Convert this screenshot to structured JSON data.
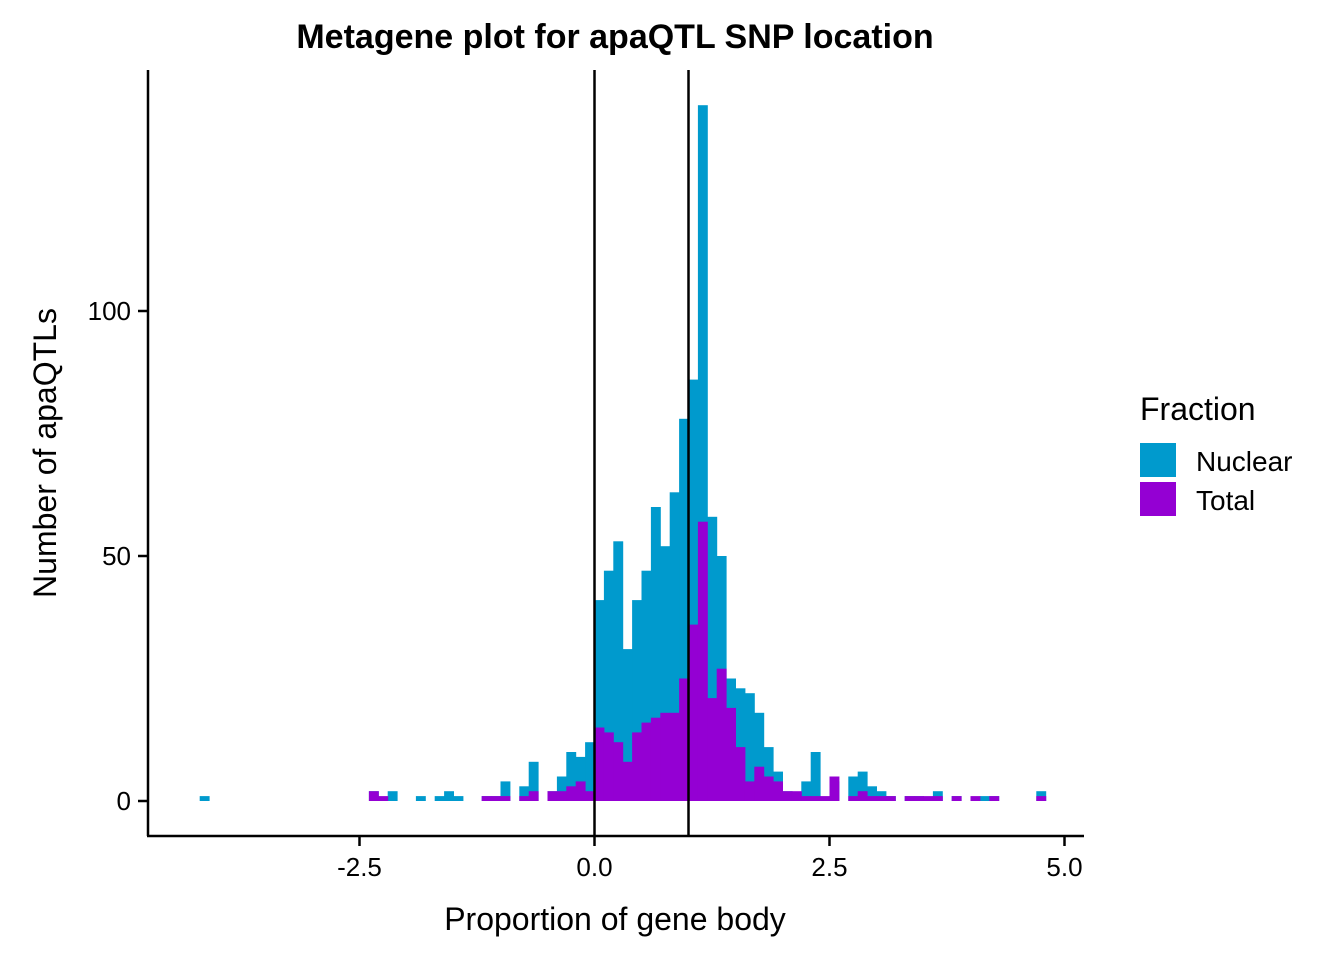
{
  "chart_data": {
    "type": "histogram",
    "title": "Metagene plot for apaQTL SNP location",
    "xlabel": "Proportion of gene body",
    "ylabel": "Number of apaQTLs",
    "xlim": [
      -4.7,
      5.2
    ],
    "ylim": [
      -7,
      148
    ],
    "x_ticks": [
      -2.5,
      0.0,
      2.5,
      5.0
    ],
    "x_tick_labels": [
      "-2.5",
      "0.0",
      "2.5",
      "5.0"
    ],
    "y_ticks": [
      0,
      50,
      100
    ],
    "y_tick_labels": [
      "0",
      "50",
      "100"
    ],
    "vlines": [
      0,
      1
    ],
    "bin_width": 0.1,
    "legend": {
      "title": "Fraction",
      "position": "right"
    },
    "series": [
      {
        "name": "Nuclear",
        "color": "#009ACD",
        "bins": [
          {
            "x": -4.2,
            "y": 1
          },
          {
            "x": -2.4,
            "y": 2
          },
          {
            "x": -2.2,
            "y": 2
          },
          {
            "x": -1.9,
            "y": 1
          },
          {
            "x": -1.7,
            "y": 1
          },
          {
            "x": -1.6,
            "y": 2
          },
          {
            "x": -1.5,
            "y": 1
          },
          {
            "x": -1.2,
            "y": 1
          },
          {
            "x": -1.1,
            "y": 1
          },
          {
            "x": -1.0,
            "y": 4
          },
          {
            "x": -0.8,
            "y": 3
          },
          {
            "x": -0.7,
            "y": 8
          },
          {
            "x": -0.5,
            "y": 2
          },
          {
            "x": -0.4,
            "y": 5
          },
          {
            "x": -0.3,
            "y": 10
          },
          {
            "x": -0.2,
            "y": 9
          },
          {
            "x": -0.1,
            "y": 12
          },
          {
            "x": 0.0,
            "y": 41
          },
          {
            "x": 0.1,
            "y": 47
          },
          {
            "x": 0.2,
            "y": 53
          },
          {
            "x": 0.3,
            "y": 31
          },
          {
            "x": 0.4,
            "y": 41
          },
          {
            "x": 0.5,
            "y": 47
          },
          {
            "x": 0.6,
            "y": 60
          },
          {
            "x": 0.7,
            "y": 52
          },
          {
            "x": 0.8,
            "y": 63
          },
          {
            "x": 0.9,
            "y": 78
          },
          {
            "x": 1.0,
            "y": 86
          },
          {
            "x": 1.1,
            "y": 142
          },
          {
            "x": 1.2,
            "y": 58
          },
          {
            "x": 1.3,
            "y": 50
          },
          {
            "x": 1.4,
            "y": 25
          },
          {
            "x": 1.5,
            "y": 23
          },
          {
            "x": 1.6,
            "y": 22
          },
          {
            "x": 1.7,
            "y": 18
          },
          {
            "x": 1.8,
            "y": 11
          },
          {
            "x": 1.9,
            "y": 6
          },
          {
            "x": 2.0,
            "y": 2
          },
          {
            "x": 2.1,
            "y": 1
          },
          {
            "x": 2.2,
            "y": 4
          },
          {
            "x": 2.3,
            "y": 10
          },
          {
            "x": 2.5,
            "y": 4
          },
          {
            "x": 2.7,
            "y": 5
          },
          {
            "x": 2.8,
            "y": 6
          },
          {
            "x": 2.9,
            "y": 3
          },
          {
            "x": 3.0,
            "y": 2
          },
          {
            "x": 3.1,
            "y": 1
          },
          {
            "x": 3.3,
            "y": 1
          },
          {
            "x": 3.4,
            "y": 1
          },
          {
            "x": 3.6,
            "y": 2
          },
          {
            "x": 3.8,
            "y": 1
          },
          {
            "x": 4.1,
            "y": 1
          },
          {
            "x": 4.2,
            "y": 1
          },
          {
            "x": 4.7,
            "y": 2
          }
        ]
      },
      {
        "name": "Total",
        "color": "#9400D3",
        "bins": [
          {
            "x": -2.4,
            "y": 2
          },
          {
            "x": -2.3,
            "y": 1
          },
          {
            "x": -1.2,
            "y": 1
          },
          {
            "x": -1.1,
            "y": 1
          },
          {
            "x": -1.0,
            "y": 1
          },
          {
            "x": -0.8,
            "y": 1
          },
          {
            "x": -0.7,
            "y": 2
          },
          {
            "x": -0.5,
            "y": 2
          },
          {
            "x": -0.4,
            "y": 2
          },
          {
            "x": -0.3,
            "y": 3
          },
          {
            "x": -0.2,
            "y": 4
          },
          {
            "x": -0.1,
            "y": 2
          },
          {
            "x": 0.0,
            "y": 15
          },
          {
            "x": 0.1,
            "y": 14
          },
          {
            "x": 0.2,
            "y": 12
          },
          {
            "x": 0.3,
            "y": 8
          },
          {
            "x": 0.4,
            "y": 14
          },
          {
            "x": 0.5,
            "y": 16
          },
          {
            "x": 0.6,
            "y": 17
          },
          {
            "x": 0.7,
            "y": 18
          },
          {
            "x": 0.8,
            "y": 18
          },
          {
            "x": 0.9,
            "y": 25
          },
          {
            "x": 1.0,
            "y": 36
          },
          {
            "x": 1.1,
            "y": 57
          },
          {
            "x": 1.2,
            "y": 21
          },
          {
            "x": 1.3,
            "y": 27
          },
          {
            "x": 1.4,
            "y": 19
          },
          {
            "x": 1.5,
            "y": 11
          },
          {
            "x": 1.6,
            "y": 4
          },
          {
            "x": 1.7,
            "y": 7
          },
          {
            "x": 1.8,
            "y": 5
          },
          {
            "x": 1.9,
            "y": 4
          },
          {
            "x": 2.0,
            "y": 2
          },
          {
            "x": 2.1,
            "y": 2
          },
          {
            "x": 2.2,
            "y": 1
          },
          {
            "x": 2.3,
            "y": 1
          },
          {
            "x": 2.4,
            "y": 1
          },
          {
            "x": 2.5,
            "y": 5
          },
          {
            "x": 2.7,
            "y": 1
          },
          {
            "x": 2.8,
            "y": 2
          },
          {
            "x": 2.9,
            "y": 1
          },
          {
            "x": 3.0,
            "y": 1
          },
          {
            "x": 3.1,
            "y": 1
          },
          {
            "x": 3.3,
            "y": 1
          },
          {
            "x": 3.4,
            "y": 1
          },
          {
            "x": 3.5,
            "y": 1
          },
          {
            "x": 3.6,
            "y": 1
          },
          {
            "x": 3.8,
            "y": 1
          },
          {
            "x": 4.0,
            "y": 1
          },
          {
            "x": 4.2,
            "y": 1
          },
          {
            "x": 4.7,
            "y": 1
          }
        ]
      }
    ]
  }
}
